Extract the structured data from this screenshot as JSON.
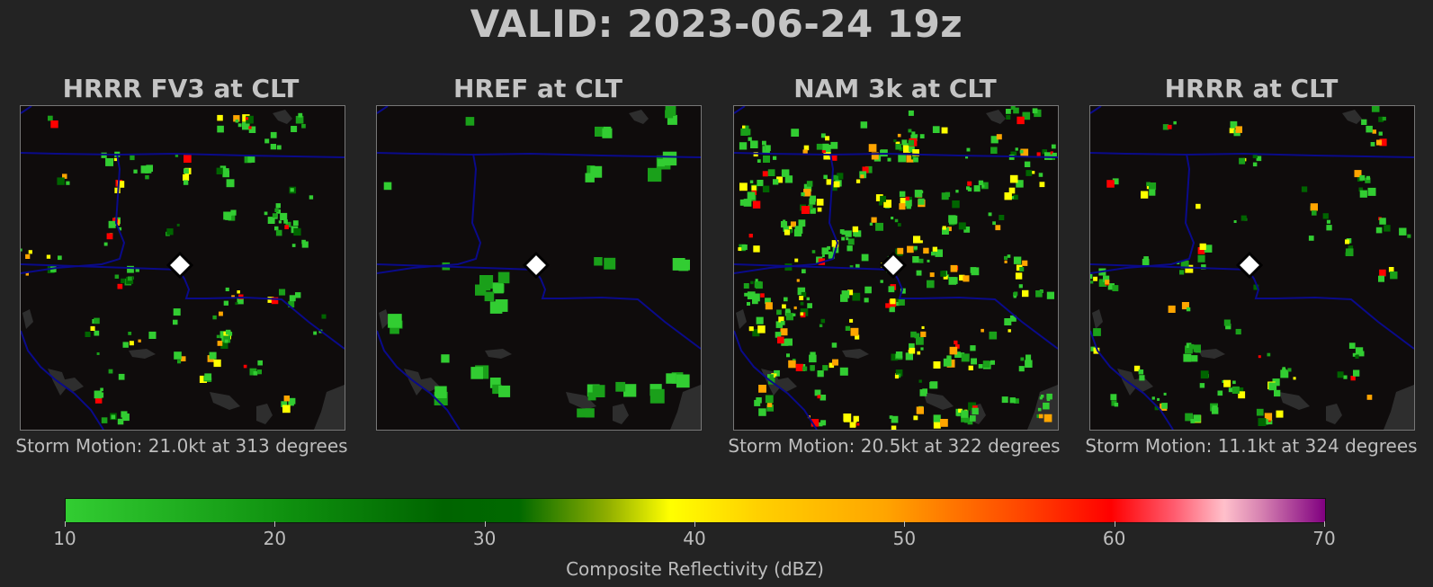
{
  "title": "VALID: 2023-06-24 19z",
  "panels": [
    {
      "title": "HRRR FV3 at CLT",
      "storm_motion": "Storm Motion: 21.0kt at 313 degrees",
      "density": 60,
      "seed": 11
    },
    {
      "title": "HREF at CLT",
      "storm_motion": "",
      "density": 25,
      "seed": 23
    },
    {
      "title": "NAM 3k at CLT",
      "storm_motion": "Storm Motion: 20.5kt at 322 degrees",
      "density": 150,
      "seed": 37
    },
    {
      "title": "HRRR at CLT",
      "storm_motion": "Storm Motion: 11.1kt at 324 degrees",
      "density": 55,
      "seed": 53
    }
  ],
  "colorbar": {
    "label": "Composite Reflectivity (dBZ)",
    "ticks": [
      "10",
      "20",
      "30",
      "40",
      "50",
      "60",
      "70"
    ],
    "min": 10,
    "max": 70
  },
  "colors": {
    "background": "#232323",
    "map_background": "#0f0c0c",
    "boundary": "#0a0a8a",
    "water": "#2e2e2e",
    "marker": "#ffffff"
  },
  "icons": {
    "station_marker": "diamond-icon"
  }
}
